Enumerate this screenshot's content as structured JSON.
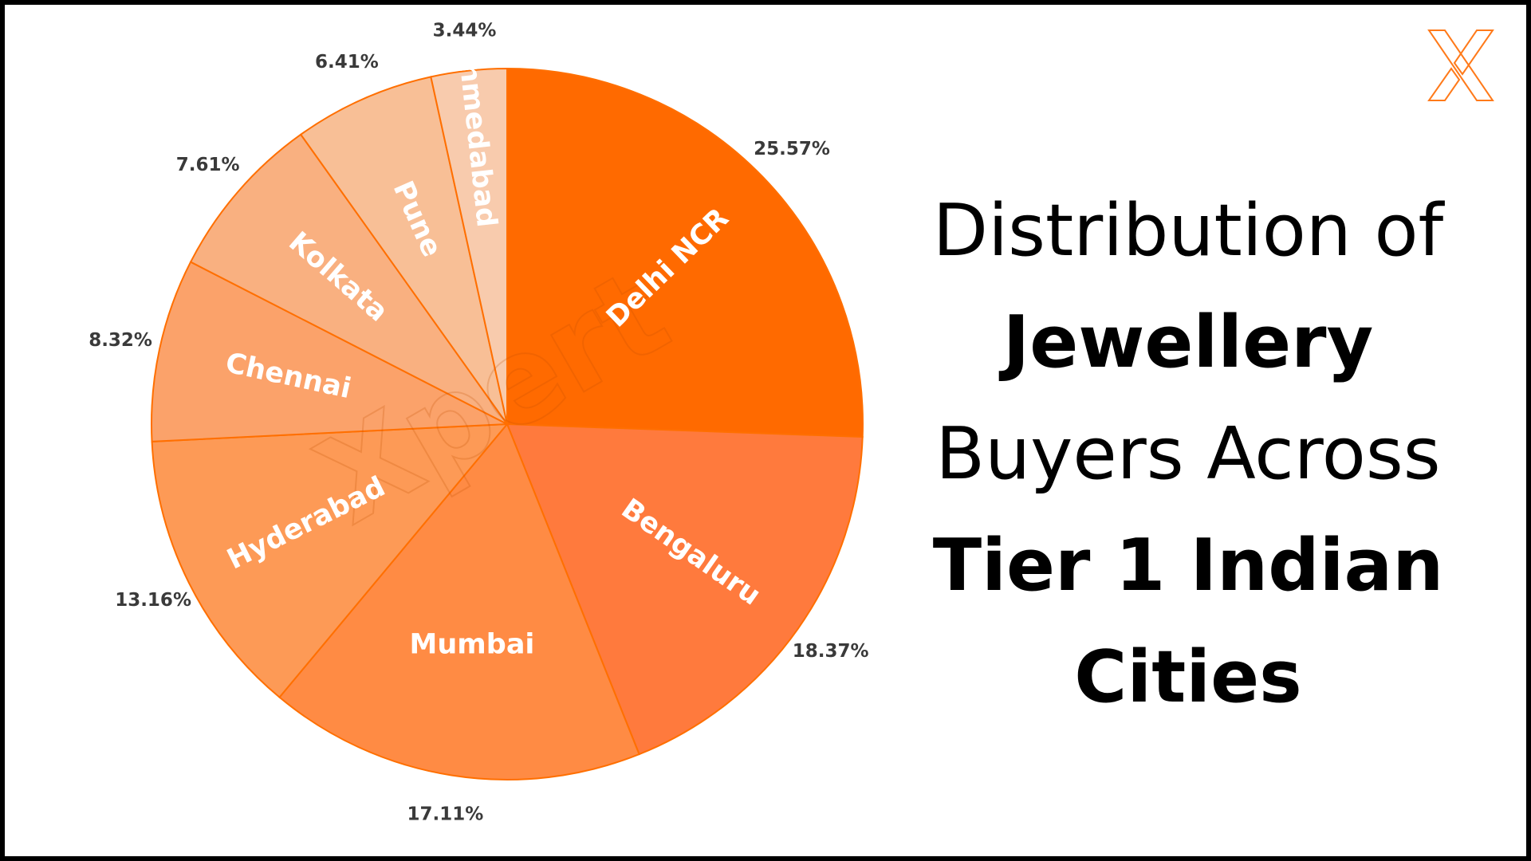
{
  "title": {
    "line1": "Distribution of",
    "line2": "Jewellery",
    "line3": "Buyers Across",
    "line4": "Tier 1 Indian",
    "line5": "Cities"
  },
  "watermark_text": "Xpert",
  "logo_icon": "x-logo-icon",
  "colors": {
    "Delhi NCR": "#ff6a00",
    "Bengaluru": "#ff7a3d",
    "Mumbai": "#ff8b44",
    "Hyderabad": "#fd9a56",
    "Chennai": "#fba26a",
    "Kolkata": "#f9b080",
    "Pune": "#f8bf96",
    "Ahmedabad": "#f8cbad",
    "slice_border": "#ff6f00",
    "ahmedabad_label": "#ff6f26"
  },
  "chart_data": {
    "type": "pie",
    "title": "Distribution of Jewellery Buyers Across Tier 1 Indian Cities",
    "start": "12 o'clock, clockwise",
    "categories": [
      "Delhi NCR",
      "Bengaluru",
      "Mumbai",
      "Hyderabad",
      "Chennai",
      "Kolkata",
      "Pune",
      "Ahmedabad"
    ],
    "values": [
      25.57,
      18.37,
      17.11,
      13.16,
      8.32,
      7.61,
      6.41,
      3.44
    ],
    "value_labels": [
      "25.57%",
      "18.37%",
      "17.11%",
      "13.16%",
      "8.32%",
      "7.61%",
      "6.41%",
      "3.44%"
    ]
  }
}
